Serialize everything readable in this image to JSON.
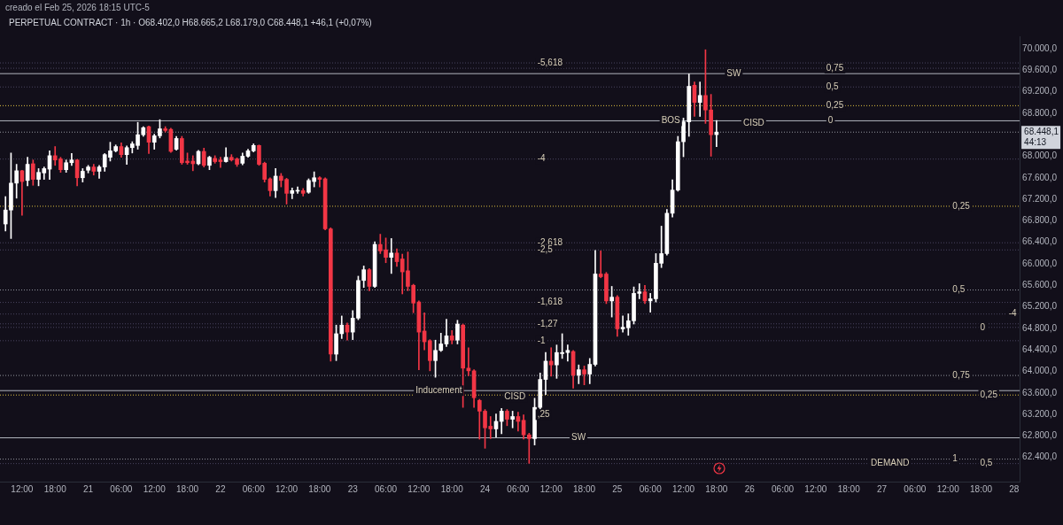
{
  "chart_data": {
    "type": "candlestick",
    "title": "PERPETUAL CONTRACT · 1h · O68.402,0 H68.665,2 L68.179,0 C68.448,1 +46,1 (+0,07%)",
    "subtitle": "creado el Feb 25, 2026 18:15 UTC-5",
    "x": [
      "2026-02-20T09:00",
      "2026-02-20T10:00",
      "2026-02-20T11:00",
      "2026-02-20T12:00",
      "2026-02-20T13:00",
      "2026-02-20T14:00",
      "2026-02-20T15:00",
      "2026-02-20T16:00",
      "2026-02-20T17:00",
      "2026-02-20T18:00",
      "2026-02-20T19:00",
      "2026-02-20T20:00",
      "2026-02-20T21:00",
      "2026-02-20T22:00",
      "2026-02-20T23:00",
      "2026-02-21T00:00",
      "2026-02-21T01:00",
      "2026-02-21T02:00",
      "2026-02-21T03:00",
      "2026-02-21T04:00",
      "2026-02-21T05:00",
      "2026-02-21T06:00",
      "2026-02-21T07:00",
      "2026-02-21T08:00",
      "2026-02-21T09:00",
      "2026-02-21T10:00",
      "2026-02-21T11:00",
      "2026-02-21T12:00",
      "2026-02-21T13:00",
      "2026-02-21T14:00",
      "2026-02-21T15:00",
      "2026-02-21T16:00",
      "2026-02-21T17:00",
      "2026-02-21T18:00",
      "2026-02-21T19:00",
      "2026-02-21T20:00",
      "2026-02-21T21:00",
      "2026-02-21T22:00",
      "2026-02-21T23:00",
      "2026-02-22T00:00",
      "2026-02-22T01:00",
      "2026-02-22T02:00",
      "2026-02-22T03:00",
      "2026-02-22T04:00",
      "2026-02-22T05:00",
      "2026-02-22T06:00",
      "2026-02-22T07:00",
      "2026-02-22T08:00",
      "2026-02-22T09:00",
      "2026-02-22T10:00",
      "2026-02-22T11:00",
      "2026-02-22T12:00",
      "2026-02-22T13:00",
      "2026-02-22T14:00",
      "2026-02-22T15:00",
      "2026-02-22T16:00",
      "2026-02-22T17:00",
      "2026-02-22T18:00",
      "2026-02-22T19:00",
      "2026-02-22T20:00",
      "2026-02-22T21:00",
      "2026-02-22T22:00",
      "2026-02-22T23:00",
      "2026-02-23T00:00",
      "2026-02-23T01:00",
      "2026-02-23T02:00",
      "2026-02-23T03:00",
      "2026-02-23T04:00",
      "2026-02-23T05:00",
      "2026-02-23T06:00",
      "2026-02-23T07:00",
      "2026-02-23T08:00",
      "2026-02-23T09:00",
      "2026-02-23T10:00",
      "2026-02-23T11:00",
      "2026-02-23T12:00",
      "2026-02-23T13:00",
      "2026-02-23T14:00",
      "2026-02-23T15:00",
      "2026-02-23T16:00",
      "2026-02-23T17:00",
      "2026-02-23T18:00",
      "2026-02-23T19:00",
      "2026-02-23T20:00",
      "2026-02-23T21:00",
      "2026-02-23T22:00",
      "2026-02-23T23:00",
      "2026-02-24T00:00",
      "2026-02-24T01:00",
      "2026-02-24T02:00",
      "2026-02-24T03:00",
      "2026-02-24T04:00",
      "2026-02-24T05:00",
      "2026-02-24T06:00",
      "2026-02-24T07:00",
      "2026-02-24T08:00",
      "2026-02-24T09:00",
      "2026-02-24T10:00",
      "2026-02-24T11:00",
      "2026-02-24T12:00",
      "2026-02-24T13:00",
      "2026-02-24T14:00",
      "2026-02-24T15:00",
      "2026-02-24T16:00",
      "2026-02-24T17:00",
      "2026-02-24T18:00",
      "2026-02-24T19:00",
      "2026-02-24T20:00",
      "2026-02-24T21:00",
      "2026-02-24T22:00",
      "2026-02-24T23:00",
      "2026-02-25T00:00",
      "2026-02-25T01:00",
      "2026-02-25T02:00",
      "2026-02-25T03:00",
      "2026-02-25T04:00",
      "2026-02-25T05:00",
      "2026-02-25T06:00",
      "2026-02-25T07:00",
      "2026-02-25T08:00",
      "2026-02-25T09:00",
      "2026-02-25T10:00",
      "2026-02-25T11:00",
      "2026-02-25T12:00",
      "2026-02-25T13:00",
      "2026-02-25T14:00",
      "2026-02-25T15:00",
      "2026-02-25T16:00",
      "2026-02-25T17:00",
      "2026-02-25T18:00"
    ],
    "ohlc": [
      [
        66740,
        67250,
        66610,
        67000
      ],
      [
        67000,
        68060,
        66470,
        67500
      ],
      [
        67500,
        67850,
        67220,
        67730
      ],
      [
        67730,
        67740,
        66900,
        67530
      ],
      [
        67550,
        67980,
        67450,
        67850
      ],
      [
        67860,
        67930,
        67460,
        67570
      ],
      [
        67570,
        67770,
        67450,
        67700
      ],
      [
        67690,
        67800,
        67570,
        67770
      ],
      [
        67760,
        68100,
        67570,
        68010
      ],
      [
        68010,
        68180,
        67830,
        67930
      ],
      [
        67950,
        67980,
        67700,
        67750
      ],
      [
        67750,
        67930,
        67700,
        67880
      ],
      [
        67880,
        68050,
        67830,
        67930
      ],
      [
        67930,
        67940,
        67450,
        67600
      ],
      [
        67600,
        67770,
        67520,
        67720
      ],
      [
        67740,
        67830,
        67690,
        67800
      ],
      [
        67800,
        67850,
        67650,
        67720
      ],
      [
        67720,
        67830,
        67590,
        67800
      ],
      [
        67800,
        68050,
        67720,
        68030
      ],
      [
        67980,
        68260,
        67910,
        68100
      ],
      [
        68100,
        68210,
        68080,
        68180
      ],
      [
        68180,
        68250,
        67980,
        68030
      ],
      [
        68030,
        68190,
        67850,
        68160
      ],
      [
        68160,
        68270,
        68060,
        68230
      ],
      [
        68200,
        68630,
        68130,
        68400
      ],
      [
        68400,
        68550,
        68370,
        68530
      ],
      [
        68550,
        68560,
        68050,
        68260
      ],
      [
        68260,
        68410,
        68130,
        68380
      ],
      [
        68380,
        68680,
        68340,
        68510
      ],
      [
        68510,
        68550,
        68450,
        68480
      ],
      [
        68500,
        68520,
        68070,
        68090
      ],
      [
        68130,
        68370,
        68110,
        68330
      ],
      [
        68330,
        68370,
        67850,
        67880
      ],
      [
        67910,
        68060,
        67850,
        67880
      ],
      [
        67910,
        68010,
        67730,
        67860
      ],
      [
        67860,
        68110,
        67840,
        68090
      ],
      [
        68090,
        68150,
        67800,
        67830
      ],
      [
        67830,
        68000,
        67750,
        67980
      ],
      [
        67960,
        68010,
        67870,
        67900
      ],
      [
        67930,
        67980,
        67790,
        67900
      ],
      [
        67900,
        68160,
        67890,
        67980
      ],
      [
        67980,
        68030,
        67910,
        67930
      ],
      [
        67950,
        67970,
        67810,
        67850
      ],
      [
        67870,
        68060,
        67840,
        68000
      ],
      [
        68000,
        68130,
        67980,
        68100
      ],
      [
        68100,
        68230,
        68080,
        68200
      ],
      [
        68200,
        68210,
        67830,
        67850
      ],
      [
        67870,
        67890,
        67520,
        67570
      ],
      [
        67580,
        67600,
        67260,
        67360
      ],
      [
        67360,
        67770,
        67230,
        67630
      ],
      [
        67630,
        67680,
        67430,
        67550
      ],
      [
        67570,
        67590,
        67110,
        67310
      ],
      [
        67310,
        67410,
        67210,
        67360
      ],
      [
        67350,
        67430,
        67310,
        67360
      ],
      [
        67360,
        67400,
        67260,
        67310
      ],
      [
        67330,
        67580,
        67310,
        67550
      ],
      [
        67530,
        67710,
        67430,
        67600
      ],
      [
        67600,
        67620,
        67430,
        67570
      ],
      [
        67580,
        67600,
        66630,
        66650
      ],
      [
        66650,
        66670,
        64190,
        64320
      ],
      [
        64320,
        64860,
        64200,
        64700
      ],
      [
        64700,
        65030,
        64610,
        64860
      ],
      [
        64860,
        64900,
        64580,
        64730
      ],
      [
        64730,
        65130,
        64590,
        64990
      ],
      [
        64990,
        65770,
        64960,
        65690
      ],
      [
        65690,
        65960,
        65560,
        65890
      ],
      [
        65890,
        65910,
        65500,
        65580
      ],
      [
        65580,
        66410,
        65560,
        66360
      ],
      [
        66360,
        66550,
        66190,
        66240
      ],
      [
        66260,
        66480,
        66020,
        66120
      ],
      [
        66120,
        66470,
        65820,
        66200
      ],
      [
        66200,
        66280,
        65950,
        66040
      ],
      [
        66090,
        66180,
        65440,
        65850
      ],
      [
        65870,
        66220,
        65500,
        65580
      ],
      [
        65600,
        65620,
        65090,
        65270
      ],
      [
        65290,
        65310,
        64030,
        64730
      ],
      [
        64750,
        65090,
        64400,
        64550
      ],
      [
        64570,
        64590,
        64010,
        64200
      ],
      [
        64200,
        64580,
        63890,
        64390
      ],
      [
        64390,
        64710,
        64370,
        64510
      ],
      [
        64510,
        64970,
        64460,
        64660
      ],
      [
        64660,
        64760,
        64510,
        64580
      ],
      [
        64580,
        64950,
        64510,
        64880
      ],
      [
        64860,
        64880,
        63330,
        64060
      ],
      [
        64060,
        64440,
        63920,
        64010
      ],
      [
        64010,
        64030,
        63330,
        63510
      ],
      [
        63460,
        63480,
        62740,
        63260
      ],
      [
        63260,
        63290,
        62570,
        62950
      ],
      [
        62980,
        63160,
        62750,
        62930
      ],
      [
        62930,
        63210,
        62780,
        63070
      ],
      [
        63070,
        63310,
        62840,
        63260
      ],
      [
        63260,
        63290,
        62990,
        63110
      ],
      [
        63110,
        63260,
        62950,
        63160
      ],
      [
        63160,
        63240,
        62890,
        63070
      ],
      [
        63090,
        63190,
        62740,
        62820
      ],
      [
        62820,
        62850,
        62290,
        62750
      ],
      [
        62750,
        63500,
        62630,
        63330
      ],
      [
        63330,
        63970,
        63300,
        63850
      ],
      [
        63850,
        64350,
        63570,
        64190
      ],
      [
        64190,
        64440,
        63910,
        64120
      ],
      [
        64120,
        64490,
        63870,
        64350
      ],
      [
        64330,
        64700,
        64240,
        64350
      ],
      [
        64350,
        64490,
        64190,
        64390
      ],
      [
        64370,
        64390,
        63690,
        63930
      ],
      [
        63930,
        64120,
        63770,
        64030
      ],
      [
        64030,
        64100,
        63750,
        63950
      ],
      [
        63950,
        64240,
        63770,
        64130
      ],
      [
        64130,
        66250,
        64100,
        65810
      ],
      [
        65810,
        66240,
        65740,
        65760
      ],
      [
        65810,
        65840,
        65260,
        65310
      ],
      [
        65310,
        65580,
        65010,
        65380
      ],
      [
        65380,
        65410,
        64650,
        64790
      ],
      [
        64790,
        65030,
        64730,
        64820
      ],
      [
        64810,
        65070,
        64670,
        64940
      ],
      [
        64940,
        65570,
        64880,
        65450
      ],
      [
        65450,
        65630,
        65350,
        65480
      ],
      [
        65480,
        65600,
        65260,
        65310
      ],
      [
        65310,
        65450,
        65100,
        65350
      ],
      [
        65350,
        66190,
        65290,
        66010
      ],
      [
        66010,
        66700,
        65930,
        66190
      ],
      [
        66190,
        67010,
        66160,
        66940
      ],
      [
        66940,
        67560,
        66870,
        67370
      ],
      [
        67370,
        68370,
        67350,
        68270
      ],
      [
        68270,
        68710,
        67990,
        68640
      ],
      [
        68640,
        69530,
        68370,
        69300
      ],
      [
        69320,
        69380,
        68740,
        69000
      ],
      [
        69000,
        69380,
        68740,
        69130
      ],
      [
        69130,
        69980,
        68610,
        68860
      ],
      [
        68860,
        69150,
        68000,
        68400
      ],
      [
        68402.0,
        68665.2,
        68179.0,
        68448.1
      ]
    ],
    "colors": [
      "#ffffff",
      "#ffffff",
      "#ffffff",
      "#f23645",
      "#ffffff",
      "#f23645",
      "#ffffff",
      "#ffffff",
      "#ffffff",
      "#f23645",
      "#f23645",
      "#ffffff",
      "#ffffff",
      "#f23645",
      "#ffffff",
      "#ffffff",
      "#f23645",
      "#ffffff",
      "#ffffff",
      "#ffffff",
      "#ffffff",
      "#f23645",
      "#ffffff",
      "#ffffff",
      "#ffffff",
      "#ffffff",
      "#f23645",
      "#ffffff",
      "#ffffff",
      "#f23645",
      "#f23645",
      "#ffffff",
      "#f23645",
      "#f23645",
      "#f23645",
      "#ffffff",
      "#f23645",
      "#ffffff",
      "#f23645",
      "#f23645",
      "#ffffff",
      "#f23645",
      "#f23645",
      "#ffffff",
      "#ffffff",
      "#ffffff",
      "#f23645",
      "#f23645",
      "#f23645",
      "#ffffff",
      "#f23645",
      "#f23645",
      "#ffffff",
      "#ffffff",
      "#f23645",
      "#ffffff",
      "#ffffff",
      "#f23645",
      "#f23645",
      "#f23645",
      "#ffffff",
      "#ffffff",
      "#f23645",
      "#ffffff",
      "#ffffff",
      "#ffffff",
      "#f23645",
      "#ffffff",
      "#f23645",
      "#f23645",
      "#ffffff",
      "#f23645",
      "#f23645",
      "#f23645",
      "#f23645",
      "#f23645",
      "#f23645",
      "#f23645",
      "#ffffff",
      "#ffffff",
      "#ffffff",
      "#f23645",
      "#ffffff",
      "#f23645",
      "#f23645",
      "#f23645",
      "#f23645",
      "#f23645",
      "#f23645",
      "#ffffff",
      "#ffffff",
      "#f23645",
      "#ffffff",
      "#f23645",
      "#f23645",
      "#f23645",
      "#ffffff",
      "#ffffff",
      "#ffffff",
      "#f23645",
      "#ffffff",
      "#ffffff",
      "#ffffff",
      "#f23645",
      "#ffffff",
      "#f23645",
      "#ffffff",
      "#ffffff",
      "#f23645",
      "#f23645",
      "#ffffff",
      "#f23645",
      "#ffffff",
      "#ffffff",
      "#ffffff",
      "#ffffff",
      "#f23645",
      "#ffffff",
      "#ffffff",
      "#ffffff",
      "#ffffff",
      "#ffffff",
      "#ffffff",
      "#ffffff",
      "#ffffff",
      "#f23645",
      "#ffffff",
      "#f23645",
      "#f23645",
      "#ffffff"
    ],
    "xlim": [
      "2026-02-20T08:00",
      "2026-02-28T01:00"
    ],
    "xticks": [
      {
        "value": "2026-02-20T12:00",
        "label": "12:00"
      },
      {
        "value": "2026-02-20T18:00",
        "label": "18:00"
      },
      {
        "value": "2026-02-21T00:00",
        "label": "21"
      },
      {
        "value": "2026-02-21T06:00",
        "label": "06:00"
      },
      {
        "value": "2026-02-21T12:00",
        "label": "12:00"
      },
      {
        "value": "2026-02-21T18:00",
        "label": "18:00"
      },
      {
        "value": "2026-02-22T00:00",
        "label": "22"
      },
      {
        "value": "2026-02-22T06:00",
        "label": "06:00"
      },
      {
        "value": "2026-02-22T12:00",
        "label": "12:00"
      },
      {
        "value": "2026-02-22T18:00",
        "label": "18:00"
      },
      {
        "value": "2026-02-23T00:00",
        "label": "23"
      },
      {
        "value": "2026-02-23T06:00",
        "label": "06:00"
      },
      {
        "value": "2026-02-23T12:00",
        "label": "12:00"
      },
      {
        "value": "2026-02-23T18:00",
        "label": "18:00"
      },
      {
        "value": "2026-02-24T00:00",
        "label": "24"
      },
      {
        "value": "2026-02-24T06:00",
        "label": "06:00"
      },
      {
        "value": "2026-02-24T12:00",
        "label": "12:00"
      },
      {
        "value": "2026-02-24T18:00",
        "label": "18:00"
      },
      {
        "value": "2026-02-25T00:00",
        "label": "25"
      },
      {
        "value": "2026-02-25T06:00",
        "label": "06:00"
      },
      {
        "value": "2026-02-25T12:00",
        "label": "12:00"
      },
      {
        "value": "2026-02-25T18:00",
        "label": "18:00"
      },
      {
        "value": "2026-02-26T00:00",
        "label": "26"
      },
      {
        "value": "2026-02-26T06:00",
        "label": "06:00"
      },
      {
        "value": "2026-02-26T12:00",
        "label": "12:00"
      },
      {
        "value": "2026-02-26T18:00",
        "label": "18:00"
      },
      {
        "value": "2026-02-27T00:00",
        "label": "27"
      },
      {
        "value": "2026-02-27T06:00",
        "label": "06:00"
      },
      {
        "value": "2026-02-27T12:00",
        "label": "12:00"
      },
      {
        "value": "2026-02-27T18:00",
        "label": "18:00"
      },
      {
        "value": "2026-02-28T00:00",
        "label": "28"
      }
    ],
    "ylim": [
      61950,
      70230
    ],
    "yticks": [
      {
        "value": 62400,
        "label": "62.400,0"
      },
      {
        "value": 62800,
        "label": "62.800,0"
      },
      {
        "value": 63200,
        "label": "63.200,0"
      },
      {
        "value": 63600,
        "label": "63.600,0"
      },
      {
        "value": 64000,
        "label": "64.000,0"
      },
      {
        "value": 64400,
        "label": "64.400,0"
      },
      {
        "value": 64800,
        "label": "64.800,0"
      },
      {
        "value": 65200,
        "label": "65.200,0"
      },
      {
        "value": 65600,
        "label": "65.600,0"
      },
      {
        "value": 66000,
        "label": "66.000,0"
      },
      {
        "value": 66400,
        "label": "66.400,0"
      },
      {
        "value": 66800,
        "label": "66.800,0"
      },
      {
        "value": 67200,
        "label": "67.200,0"
      },
      {
        "value": 67600,
        "label": "67.600,0"
      },
      {
        "value": 68000,
        "label": "68.000,0"
      },
      {
        "value": 68800,
        "label": "68.800,0"
      },
      {
        "value": 69200,
        "label": "69.200,0"
      },
      {
        "value": 69600,
        "label": "69.600,0"
      },
      {
        "value": 70000,
        "label": "70.000,0"
      }
    ],
    "ref_lines": [
      {
        "axis": "y",
        "value": 68448.1,
        "label": "68.448,1",
        "color": "#9598a1",
        "line_style": "dotted"
      },
      {
        "axis": "y",
        "value": 68659,
        "color": "#b2b5be",
        "line_style": "solid"
      },
      {
        "axis": "y",
        "value": 67070,
        "color": "#e0c341",
        "line_style": "dotted"
      },
      {
        "axis": "y",
        "value": 65513,
        "color": "#9598a1",
        "line_style": "dotted"
      },
      {
        "axis": "y",
        "value": 63924,
        "color": "#9598a1",
        "line_style": "dotted"
      },
      {
        "axis": "y",
        "value": 63642,
        "color": "#b2b5be",
        "line_style": "solid"
      },
      {
        "axis": "y",
        "value": 63560,
        "color": "#e0c341",
        "line_style": "dotted"
      },
      {
        "axis": "y",
        "value": 62368,
        "color": "#9598a1",
        "line_style": "dotted"
      },
      {
        "axis": "y",
        "value": 69735,
        "color": "#4a4560",
        "line_style": "dotted"
      },
      {
        "axis": "y",
        "value": 67947,
        "color": "#4a4560",
        "line_style": "dotted"
      },
      {
        "axis": "y",
        "value": 66391,
        "color": "#4a4560",
        "line_style": "dotted"
      },
      {
        "axis": "y",
        "value": 66258,
        "color": "#4a4560",
        "line_style": "dotted"
      },
      {
        "axis": "y",
        "value": 65282,
        "color": "#4a4560",
        "line_style": "dotted"
      },
      {
        "axis": "y",
        "value": 64884,
        "color": "#4a4560",
        "line_style": "dotted"
      },
      {
        "axis": "y",
        "value": 64570,
        "color": "#4a4560",
        "line_style": "dotted"
      },
      {
        "axis": "y",
        "value": 69536,
        "color": "#b2b5be",
        "line_style": "solid"
      },
      {
        "axis": "y",
        "value": 69636,
        "color": "#4a4560",
        "line_style": "dotted"
      },
      {
        "axis": "y",
        "value": 69288,
        "color": "#4a4560",
        "line_style": "dotted"
      },
      {
        "axis": "y",
        "value": 68940,
        "color": "#e0c341",
        "line_style": "dotted"
      },
      {
        "axis": "y",
        "value": 65066,
        "color": "#4a4560",
        "line_style": "dotted"
      },
      {
        "axis": "y",
        "value": 64818,
        "color": "#4a4560",
        "line_style": "dotted"
      },
      {
        "axis": "y",
        "value": 62285,
        "color": "#4a4560",
        "line_style": "dotted"
      },
      {
        "axis": "y",
        "value": 62765,
        "color": "#b2b5be",
        "line_style": "solid"
      }
    ],
    "annotations": [
      "44:13",
      {
        "text": "-5,618",
        "x": "2026-02-24T09:30",
        "y": 69735
      },
      {
        "text": "-4",
        "x": "2026-02-24T09:30",
        "y": 67947
      },
      {
        "text": "-2,618",
        "x": "2026-02-24T09:30",
        "y": 66391
      },
      {
        "text": "-2,5",
        "x": "2026-02-24T09:30",
        "y": 66258
      },
      {
        "text": "-1,618",
        "x": "2026-02-24T09:30",
        "y": 65282
      },
      {
        "text": "-1,27",
        "x": "2026-02-24T09:30",
        "y": 64884
      },
      {
        "text": "-1",
        "x": "2026-02-24T09:30",
        "y": 64570
      },
      {
        "text": ",25",
        "x": "2026-02-24T09:30",
        "y": 63195
      },
      {
        "text": "BOS",
        "x": "2026-02-25T08:00",
        "y": 68659
      },
      {
        "text": "SW",
        "x": "2026-02-25T19:50",
        "y": 69536
      },
      {
        "text": "CISD",
        "x": "2026-02-25T22:50",
        "y": 68609
      },
      {
        "text": "0,75",
        "x": "2026-02-26T13:55",
        "y": 69636
      },
      {
        "text": "0,5",
        "x": "2026-02-26T13:55",
        "y": 69288
      },
      {
        "text": "0,25",
        "x": "2026-02-26T13:55",
        "y": 68940
      },
      {
        "text": "0",
        "x": "2026-02-26T14:15",
        "y": 68659
      },
      {
        "text": "0,25",
        "x": "2026-02-27T12:50",
        "y": 67070
      },
      {
        "text": "0,5",
        "x": "2026-02-27T12:50",
        "y": 65513
      },
      {
        "text": "-4",
        "x": "2026-02-27T23:00",
        "y": 65066
      },
      {
        "text": "0",
        "x": "2026-02-27T17:50",
        "y": 64818
      },
      {
        "text": "0,75",
        "x": "2026-02-27T12:50",
        "y": 63924
      },
      {
        "text": "0,25",
        "x": "2026-02-27T17:50",
        "y": 63560
      },
      {
        "text": "1",
        "x": "2026-02-27T12:50",
        "y": 62368
      },
      {
        "text": "0,5",
        "x": "2026-02-27T17:50",
        "y": 62285
      },
      {
        "text": "DEMAND",
        "x": "2026-02-26T22:00",
        "y": 62285
      },
      {
        "text": "Inducement",
        "x": "2026-02-23T11:25",
        "y": 63642
      },
      {
        "text": "CISD",
        "x": "2026-02-24T03:30",
        "y": 63527
      },
      {
        "text": "SW",
        "x": "2026-02-24T15:40",
        "y": 62765
      }
    ],
    "grid": false,
    "legend": false
  }
}
